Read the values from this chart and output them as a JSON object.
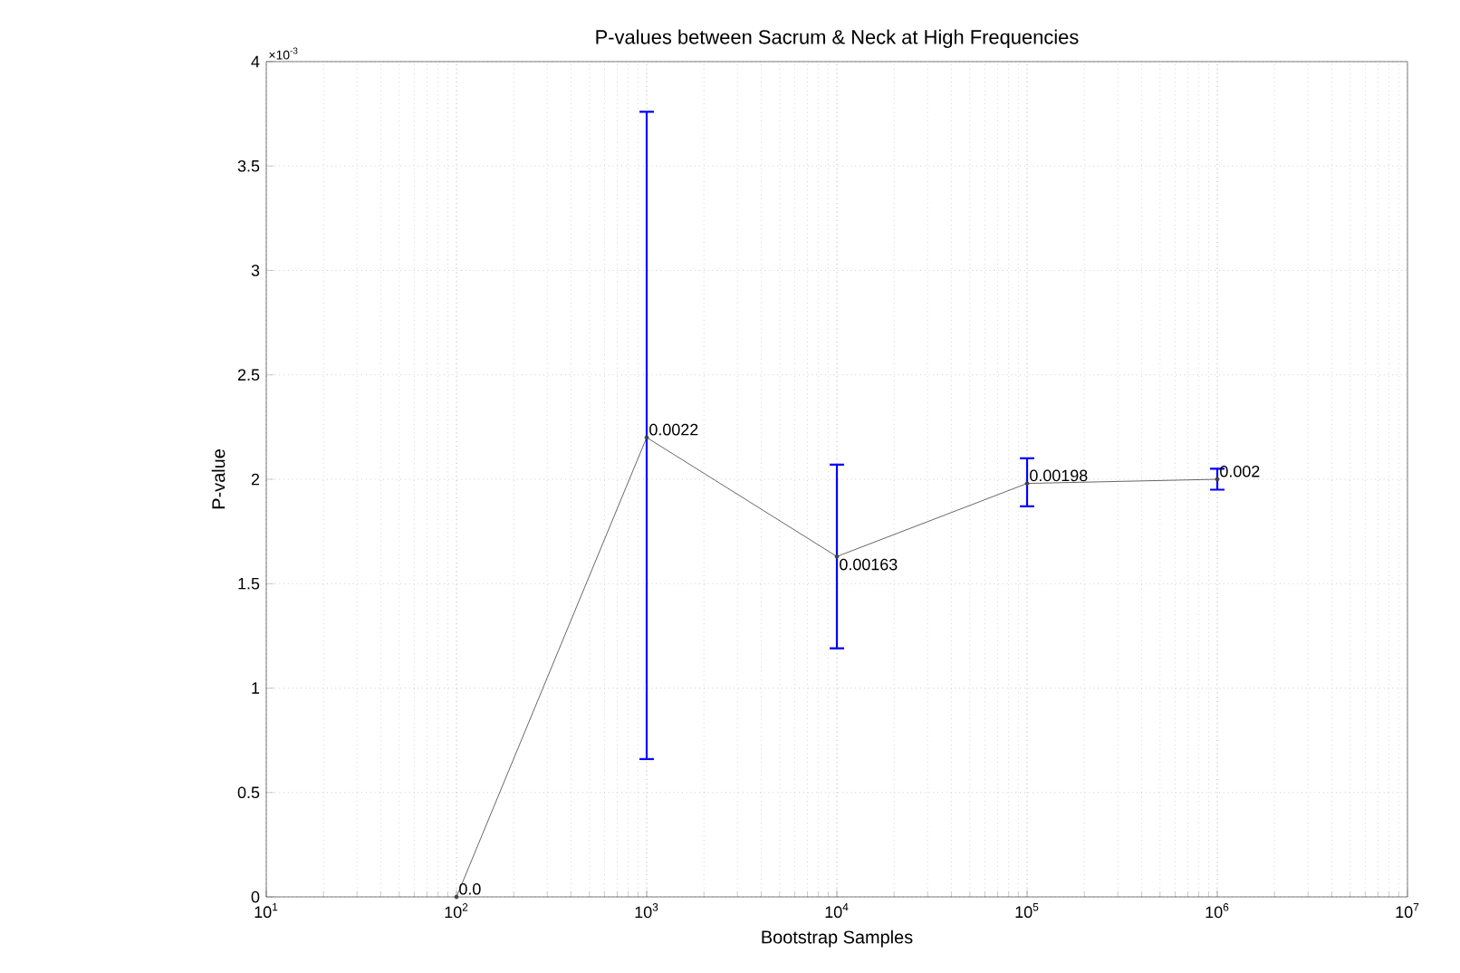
{
  "chart_data": {
    "type": "line",
    "title": "P-values between Sacrum & Neck at High Frequencies",
    "xlabel": "Bootstrap Samples",
    "ylabel": "P-value",
    "annotations": [
      "×10$^{-3}$",
      {
        "text": "0.0",
        "x": 100,
        "y": 0
      },
      {
        "text": "0.0022",
        "x": 1000,
        "y": 2.2
      },
      {
        "text": "0.00163",
        "x": 10000,
        "y": 1.63
      },
      {
        "text": "0.00198",
        "x": 100000,
        "y": 1.98
      },
      {
        "text": "0.002",
        "x": 1000000,
        "y": 2.0
      }
    ],
    "x": [
      100,
      1000,
      10000,
      100000,
      1000000
    ],
    "series": [
      {
        "color": "#404040",
        "values": [
          0,
          2.2,
          1.63,
          1.98,
          2.0
        ],
        "errors": [
          null,
          [
            0.66,
            3.76
          ],
          [
            1.19,
            2.07
          ],
          [
            1.87,
            2.1
          ],
          [
            1.95,
            2.05
          ]
        ]
      }
    ],
    "log": "x",
    "xlim": [
      10,
      10000000
    ],
    "xticks": [
      {
        "value": 10,
        "label": "10$^{1}$"
      },
      {
        "value": 100,
        "label": "10$^{2}$"
      },
      {
        "value": 1000,
        "label": "10$^{3}$"
      },
      {
        "value": 10000,
        "label": "10$^{4}$"
      },
      {
        "value": 100000,
        "label": "10$^{5}$"
      },
      {
        "value": 1000000,
        "label": "10$^{6}$"
      },
      {
        "value": 10000000,
        "label": "10$^{7}$"
      }
    ],
    "ylim": [
      0,
      4
    ],
    "yticks": [
      0,
      0.5,
      1,
      1.5,
      2,
      2.5,
      3,
      3.5,
      4
    ],
    "grid": true,
    "marker": "circle",
    "line_style": "solid"
  }
}
